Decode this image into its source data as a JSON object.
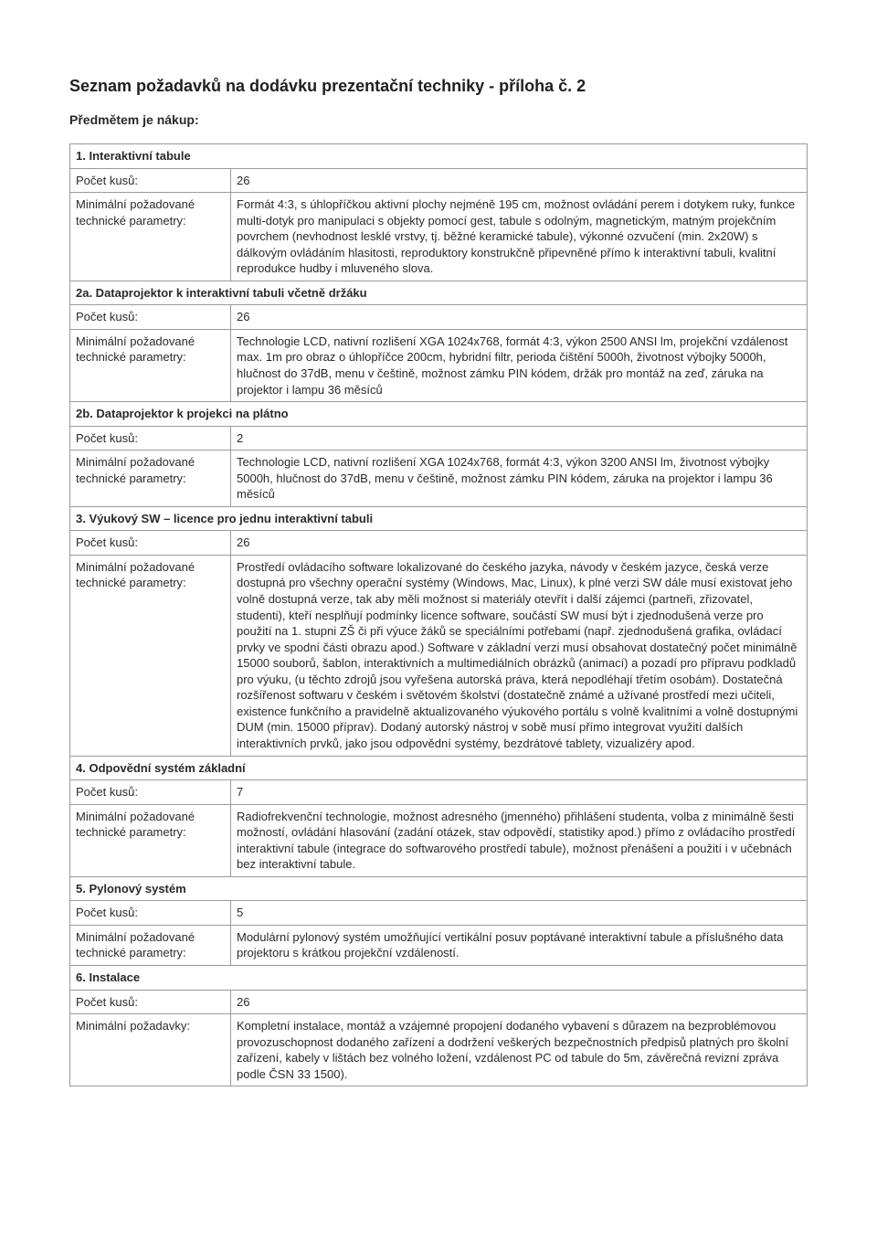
{
  "title": "Seznam požadavků na dodávku prezentační techniky - příloha č. 2",
  "subheading": "Předmětem je nákup:",
  "labels": {
    "pocet": "Počet kusů:",
    "minParams": "Minimální požadované technické parametry:",
    "minReq": "Minimální požadavky:"
  },
  "s1": {
    "header": "1. Interaktivní tabule",
    "count": "26",
    "params": "Formát 4:3, s úhlopříčkou aktivní plochy nejméně 195 cm, možnost ovládání perem i dotykem ruky, funkce multi-dotyk pro manipulaci s objekty pomocí gest, tabule s odolným, magnetickým, matným projekčním povrchem (nevhodnost lesklé vrstvy, tj. běžné keramické tabule), výkonné ozvučení (min. 2x20W) s dálkovým ovládáním hlasitosti, reproduktory konstrukčně připevněné přímo k interaktivní tabuli, kvalitní reprodukce hudby i mluveného slova."
  },
  "s2a": {
    "header": "2a. Dataprojektor k interaktivní tabuli včetně držáku",
    "count": "26",
    "params": "Technologie LCD, nativní rozlišení XGA 1024x768, formát 4:3, výkon 2500 ANSI lm, projekční vzdálenost max. 1m pro obraz o úhlopříčce 200cm, hybridní filtr, perioda čištění 5000h, životnost výbojky 5000h, hlučnost do 37dB, menu v češtině, možnost zámku PIN kódem, držák pro montáž na zeď, záruka na projektor i lampu 36 měsíců"
  },
  "s2b": {
    "header": "2b. Dataprojektor k projekci na plátno",
    "count": "2",
    "params": "Technologie LCD, nativní rozlišení XGA 1024x768, formát 4:3, výkon 3200 ANSI lm, životnost výbojky 5000h, hlučnost do 37dB, menu v češtině, možnost zámku PIN kódem, záruka na projektor i lampu 36 měsíců"
  },
  "s3": {
    "header": "3. Výukový SW – licence pro jednu interaktivní tabuli",
    "count": "26",
    "params": "Prostředí ovládacího software lokalizované do českého jazyka, návody v českém jazyce, česká verze dostupná pro všechny operační systémy (Windows, Mac, Linux), k plné verzi SW dále musí existovat jeho volně dostupná verze, tak aby měli možnost si materiály otevřít i další zájemci (partneři, zřizovatel, studenti), kteří nesplňují podmínky licence software, součástí SW musí být i zjednodušená verze pro použití na 1. stupni ZŠ či při výuce žáků se speciálními potřebami (např. zjednodušená grafika, ovládací prvky ve spodní části obrazu apod.) Software v základní verzi musí obsahovat dostatečný počet minimálně 15000 souborů, šablon, interaktivních a multimediálních obrázků (animací) a pozadí pro přípravu podkladů pro výuku, (u těchto zdrojů jsou vyřešena autorská práva, která nepodléhají třetím osobám). Dostatečná rozšířenost softwaru v českém i světovém školství (dostatečně známé a užívané prostředí mezi učiteli, existence funkčního a pravidelně aktualizovaného výukového portálu s volně kvalitními a volně dostupnými DUM (min. 15000 příprav). Dodaný autorský nástroj v sobě musí přímo integrovat využití dalších interaktivních prvků, jako jsou odpovědní systémy, bezdrátové tablety, vizualizéry apod."
  },
  "s4": {
    "header": "4. Odpovědní systém základní",
    "count": "7",
    "params": "Radiofrekvenční technologie, možnost adresného (jmenného) přihlášení studenta, volba z minimálně šesti možností, ovládání hlasování (zadání otázek, stav odpovědí, statistiky apod.) přímo z ovládacího prostředí interaktivní tabule (integrace do softwarového prostředí tabule), možnost přenášení a použití i v učebnách bez interaktivní tabule."
  },
  "s5": {
    "header": "5. Pylonový systém",
    "count": "5",
    "params": "Modulární pylonový systém umožňující vertikální posuv poptávané interaktivní tabule a příslušného data projektoru s krátkou projekční vzdáleností."
  },
  "s6": {
    "header": "6. Instalace",
    "count": "26",
    "params": "Kompletní instalace, montáž a vzájemné propojení dodaného vybavení s důrazem na bezproblémovou provozuschopnost dodaného zařízení a dodržení veškerých bezpečnostních předpisů platných pro školní zařízení, kabely v lištách bez volného ložení, vzdálenost PC od tabule do 5m, závěrečná revizní zpráva podle ČSN 33 1500)."
  }
}
